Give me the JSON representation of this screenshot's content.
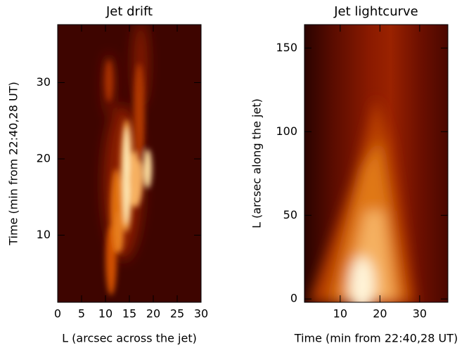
{
  "chart_data": [
    {
      "type": "heatmap",
      "title": "Jet drift",
      "xlabel": "L (arcsec across the jet)",
      "ylabel": "Time (min from 22:40,28 UT)",
      "xlim": [
        0,
        30
      ],
      "xticks": [
        0,
        5,
        10,
        15,
        20,
        25,
        30
      ],
      "ylim": [
        1.2,
        37.6
      ],
      "yticks": [
        10,
        20,
        30
      ]
    },
    {
      "type": "heatmap",
      "title": "Jet lightcurve",
      "xlabel": "Time (min from 22:40,28 UT)",
      "ylabel": "L (arcsec along the jet)",
      "xlim": [
        1,
        37.1
      ],
      "xticks": [
        10,
        20,
        30
      ],
      "ylim": [
        -2,
        164
      ],
      "yticks": [
        0,
        50,
        100,
        150
      ]
    }
  ]
}
